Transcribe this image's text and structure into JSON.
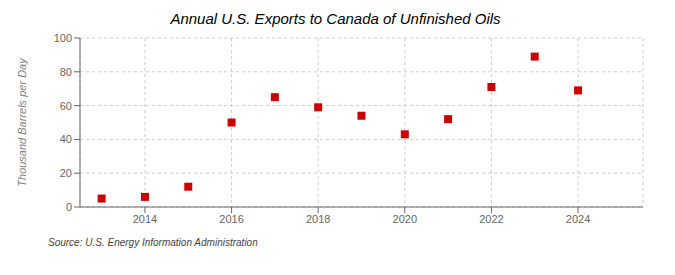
{
  "chart_data": {
    "type": "scatter",
    "title": "Annual U.S. Exports to Canada of Unfinished Oils",
    "ylabel": "Thousand Barrels per Day",
    "annotations": [
      "Source: U.S. Energy Information Administration"
    ],
    "x": [
      2013,
      2014,
      2015,
      2016,
      2017,
      2018,
      2019,
      2020,
      2021,
      2022,
      2023,
      2024
    ],
    "values": [
      5,
      6,
      12,
      50,
      65,
      59,
      54,
      43,
      52,
      71,
      89,
      69
    ],
    "xlim": [
      2012.5,
      2025.5
    ],
    "xticks": [
      2014,
      2016,
      2018,
      2020,
      2022,
      2024
    ],
    "ylim": [
      0,
      100
    ],
    "yticks": [
      0,
      20,
      40,
      60,
      80,
      100
    ],
    "color": "#cc0000",
    "marker": "square",
    "grid": true
  }
}
